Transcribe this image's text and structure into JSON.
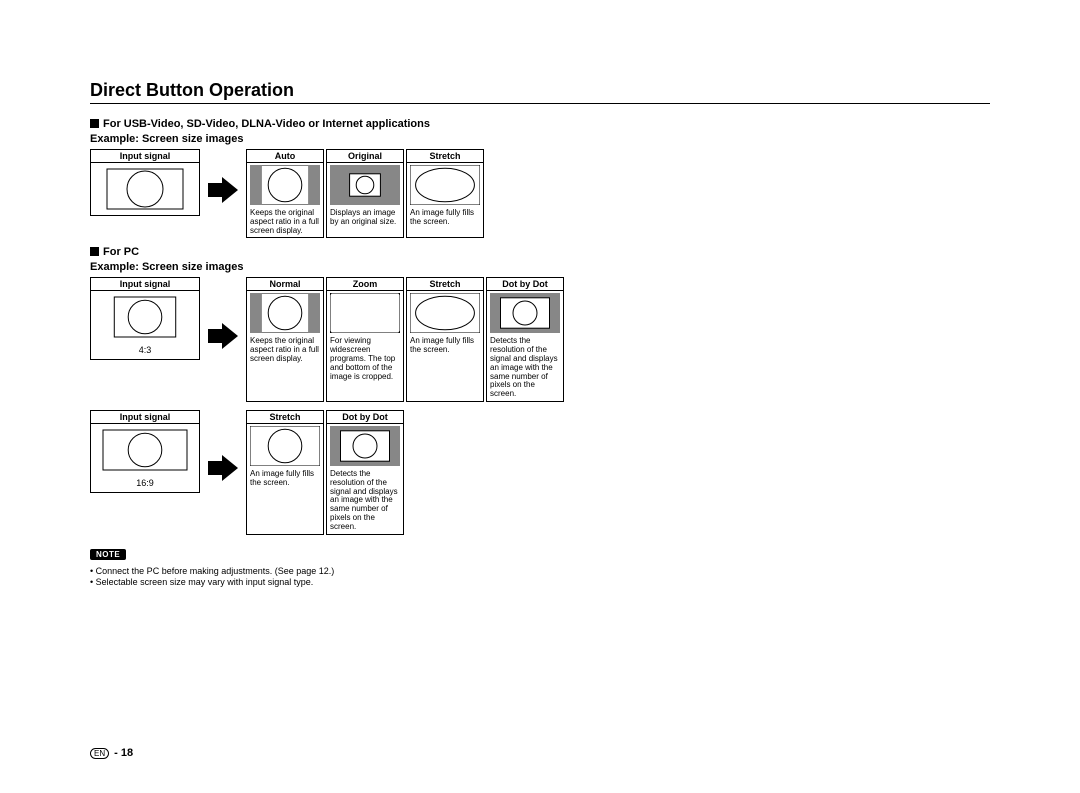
{
  "title": "Direct Button Operation",
  "colors": {
    "pillarbox": "#878787",
    "line": "#000000",
    "bg": "#ffffff"
  },
  "section1": {
    "heading": "For USB-Video, SD-Video, DLNA-Video or Internet applications",
    "sub": "Example: Screen size images",
    "input_label": "Input signal",
    "options": [
      {
        "name": "Auto",
        "desc": "Keeps the original aspect ratio in a full screen display.",
        "shape": "pillarbox-circle"
      },
      {
        "name": "Original",
        "desc": "Displays an image by an original size.",
        "shape": "small-center"
      },
      {
        "name": "Stretch",
        "desc": "An image fully fills the screen.",
        "shape": "ellipse-full"
      }
    ]
  },
  "section2": {
    "heading": "For PC",
    "sub": "Example: Screen size images",
    "rows": [
      {
        "input_label": "Input signal",
        "ratio": "4:3",
        "input_shape": "narrow-circle",
        "options": [
          {
            "name": "Normal",
            "desc": "Keeps the original aspect ratio in a full screen display.",
            "shape": "pillarbox-circle"
          },
          {
            "name": "Zoom",
            "desc": "For viewing widescreen programs. The top and bottom of the image is cropped.",
            "shape": "letterbox-wide"
          },
          {
            "name": "Stretch",
            "desc": "An image fully fills the screen.",
            "shape": "ellipse-full"
          },
          {
            "name": "Dot by Dot",
            "desc": "Detects the resolution of the signal and displays an image with the same number of pixels on the screen.",
            "shape": "windowbox-circle"
          }
        ]
      },
      {
        "input_label": "Input signal",
        "ratio": "16:9",
        "input_shape": "wide-circle",
        "options": [
          {
            "name": "Stretch",
            "desc": "An image fully fills the screen.",
            "shape": "circle-full"
          },
          {
            "name": "Dot by Dot",
            "desc": "Detects the resolution of the signal and displays an image with the same number of pixels on the screen.",
            "shape": "windowbox-circle"
          }
        ]
      }
    ]
  },
  "notes_label": "NOTE",
  "notes": [
    "Connect the PC before making adjustments. (See page 12.)",
    "Selectable screen size may vary with input signal type."
  ],
  "footer": {
    "lang": "EN",
    "sep": " - ",
    "page": "18"
  }
}
